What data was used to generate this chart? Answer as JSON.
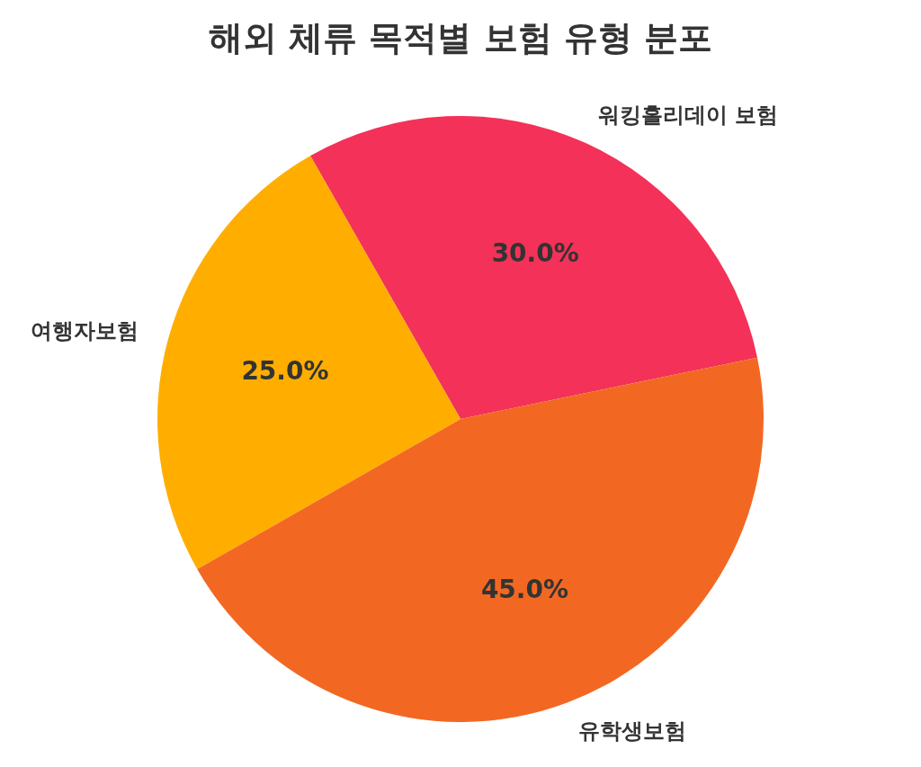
{
  "chart_data": {
    "type": "pie",
    "title": "해외 체류 목적별 보험 유형 분포",
    "categories": [
      "워킹홀리데이 보험",
      "여행자보험",
      "유학생보험"
    ],
    "values": [
      30,
      25,
      45
    ],
    "colors": [
      "#f43158",
      "#ffae00",
      "#f26822"
    ],
    "value_labels": [
      "30.0%",
      "25.0%",
      "45.0%"
    ],
    "legend": false
  }
}
